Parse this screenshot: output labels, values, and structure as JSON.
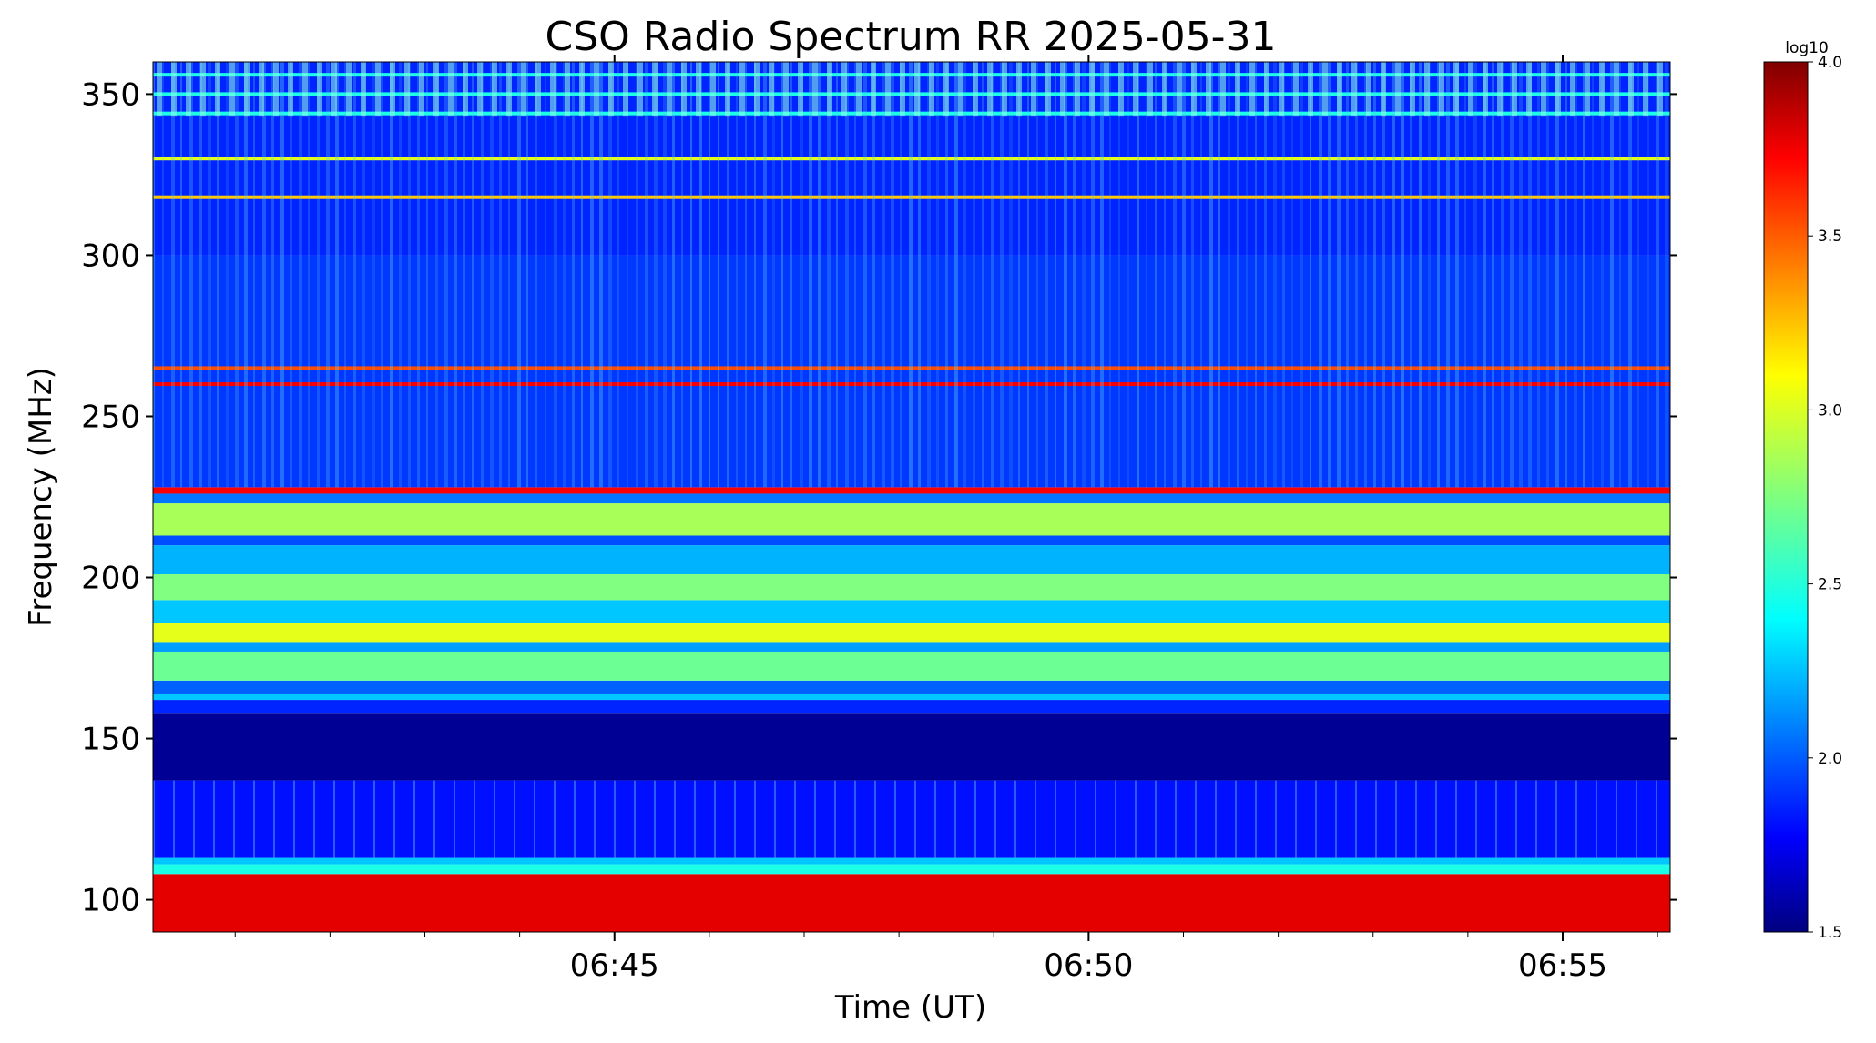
{
  "chart_data": {
    "type": "heatmap",
    "title": "CSO Radio Spectrum RR 2025-05-31",
    "xlabel": "Time (UT)",
    "ylabel": "Frequency (MHz)",
    "x_range": [
      "06:40:08",
      "06:56:08"
    ],
    "x_ticks": [
      "06:45",
      "06:50",
      "06:55"
    ],
    "ylim": [
      90,
      360
    ],
    "y_ticks": [
      100,
      150,
      200,
      250,
      300,
      350
    ],
    "colorbar": {
      "label": "log10",
      "range": [
        1.5,
        4.0
      ],
      "ticks": [
        "1.5",
        "2.0",
        "2.5",
        "3.0",
        "3.5",
        "4.0"
      ],
      "colormap": "jet"
    },
    "frequency_bands": [
      {
        "from": 90,
        "to": 108,
        "level": 3.75
      },
      {
        "from": 108,
        "to": 111,
        "level": 2.5
      },
      {
        "from": 111,
        "to": 113,
        "level": 2.3
      },
      {
        "from": 113,
        "to": 137,
        "level": 1.85
      },
      {
        "from": 137,
        "to": 158,
        "level": 1.55
      },
      {
        "from": 158,
        "to": 162,
        "level": 1.9
      },
      {
        "from": 162,
        "to": 164,
        "level": 2.3
      },
      {
        "from": 164,
        "to": 168,
        "level": 2.05
      },
      {
        "from": 168,
        "to": 177,
        "level": 2.7
      },
      {
        "from": 177,
        "to": 180,
        "level": 2.2
      },
      {
        "from": 180,
        "to": 186,
        "level": 3.0
      },
      {
        "from": 186,
        "to": 193,
        "level": 2.3
      },
      {
        "from": 193,
        "to": 201,
        "level": 2.75
      },
      {
        "from": 201,
        "to": 210,
        "level": 2.25
      },
      {
        "from": 210,
        "to": 213,
        "level": 2.0
      },
      {
        "from": 213,
        "to": 223,
        "level": 2.85
      },
      {
        "from": 223,
        "to": 226,
        "level": 2.1
      },
      {
        "from": 226,
        "to": 228,
        "level": 3.7
      },
      {
        "from": 228,
        "to": 300,
        "level": 1.95
      },
      {
        "from": 300,
        "to": 360,
        "level": 1.9
      }
    ],
    "highlight_lines": [
      {
        "freq": 260,
        "level": 3.7
      },
      {
        "freq": 265,
        "level": 3.5
      },
      {
        "freq": 318,
        "level": 3.2
      },
      {
        "freq": 330,
        "level": 3.0
      },
      {
        "freq": 344,
        "level": 2.5
      },
      {
        "freq": 350,
        "level": 2.5
      },
      {
        "freq": 356,
        "level": 2.5
      }
    ]
  }
}
